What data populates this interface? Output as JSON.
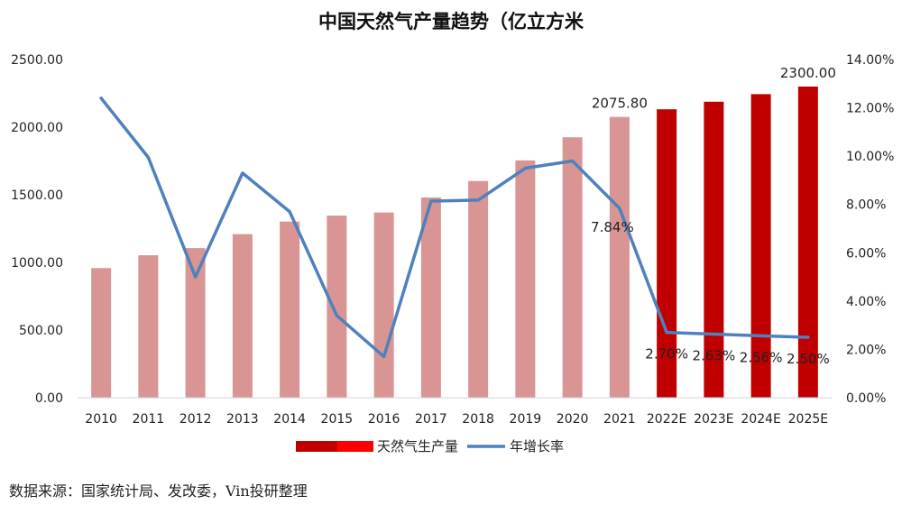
{
  "chart_data": {
    "type": "bar+line",
    "title": "中国天然气产量趋势（亿立方米",
    "categories": [
      "2010",
      "2011",
      "2012",
      "2013",
      "2014",
      "2015",
      "2016",
      "2017",
      "2018",
      "2019",
      "2020",
      "2021",
      "2022E",
      "2023E",
      "2024E",
      "2025E"
    ],
    "series": [
      {
        "name": "天然气生产量",
        "type": "bar",
        "axis": "left",
        "values": [
          958,
          1053,
          1106,
          1209,
          1302,
          1346,
          1369,
          1480,
          1602,
          1754,
          1925,
          2075.8,
          2132,
          2188,
          2244,
          2300
        ],
        "actual_color": "#d99594",
        "forecast_color": "#c00000"
      },
      {
        "name": "年增长率",
        "type": "line",
        "axis": "right",
        "unit": "%",
        "values": [
          12.4,
          9.95,
          5.0,
          9.3,
          7.7,
          3.4,
          1.7,
          8.14,
          8.18,
          9.5,
          9.8,
          7.84,
          2.7,
          2.63,
          2.56,
          2.5
        ],
        "color": "#4f81bd"
      }
    ],
    "y_left": {
      "min": 0,
      "max": 2500,
      "ticks": [
        "0.00",
        "500.00",
        "1000.00",
        "1500.00",
        "2000.00",
        "2500.00"
      ]
    },
    "y_right": {
      "min": 0,
      "max": 14,
      "ticks": [
        "0.00%",
        "2.00%",
        "4.00%",
        "6.00%",
        "8.00%",
        "10.00%",
        "12.00%",
        "14.00%"
      ]
    },
    "bar_labels": [
      {
        "index": 11,
        "text": "2075.80"
      },
      {
        "index": 15,
        "text": "2300.00"
      }
    ],
    "line_labels": [
      {
        "index": 11,
        "text": "7.84%"
      },
      {
        "index": 12,
        "text": "2.70%"
      },
      {
        "index": 13,
        "text": "2.63%"
      },
      {
        "index": 14,
        "text": "2.56%"
      },
      {
        "index": 15,
        "text": "2.50%"
      }
    ],
    "legend": {
      "position": "bottom",
      "bar_label": "天然气生产量",
      "line_label": "年增长率",
      "swatch_colors": [
        "#c00000",
        "#ff0000"
      ]
    },
    "grid": false
  },
  "source_text": "数据来源：国家统计局、发改委，Vin投研整理"
}
